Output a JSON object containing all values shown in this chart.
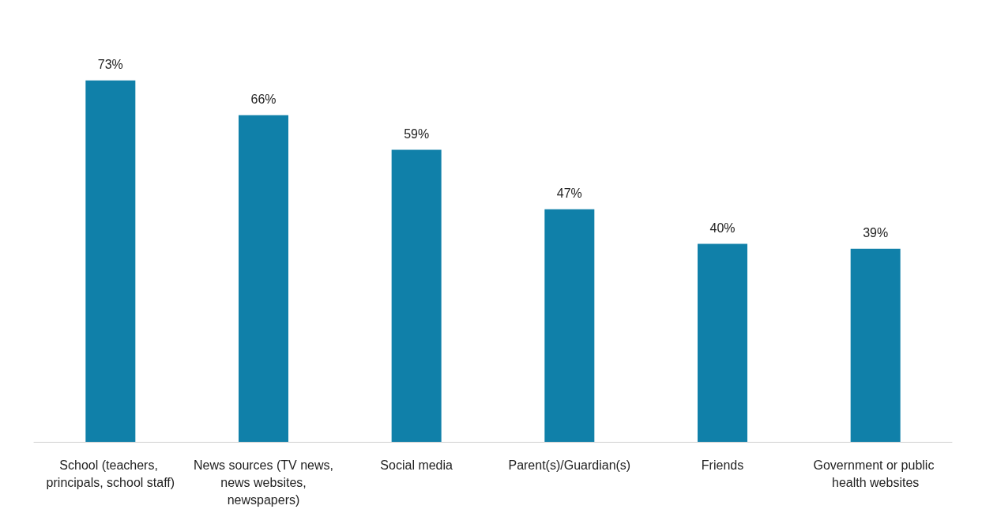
{
  "chart_data": {
    "type": "bar",
    "categories": [
      "School (teachers, principals, school staff)",
      "News sources (TV news, news websites, newspapers)",
      "Social media",
      "Parent(s)/Guardian(s)",
      "Friends",
      "Government or public health websites"
    ],
    "values": [
      73,
      66,
      59,
      47,
      40,
      39
    ],
    "value_labels": [
      "73%",
      "66%",
      "59%",
      "47%",
      "40%",
      "39%"
    ],
    "color": "#1080a9"
  }
}
